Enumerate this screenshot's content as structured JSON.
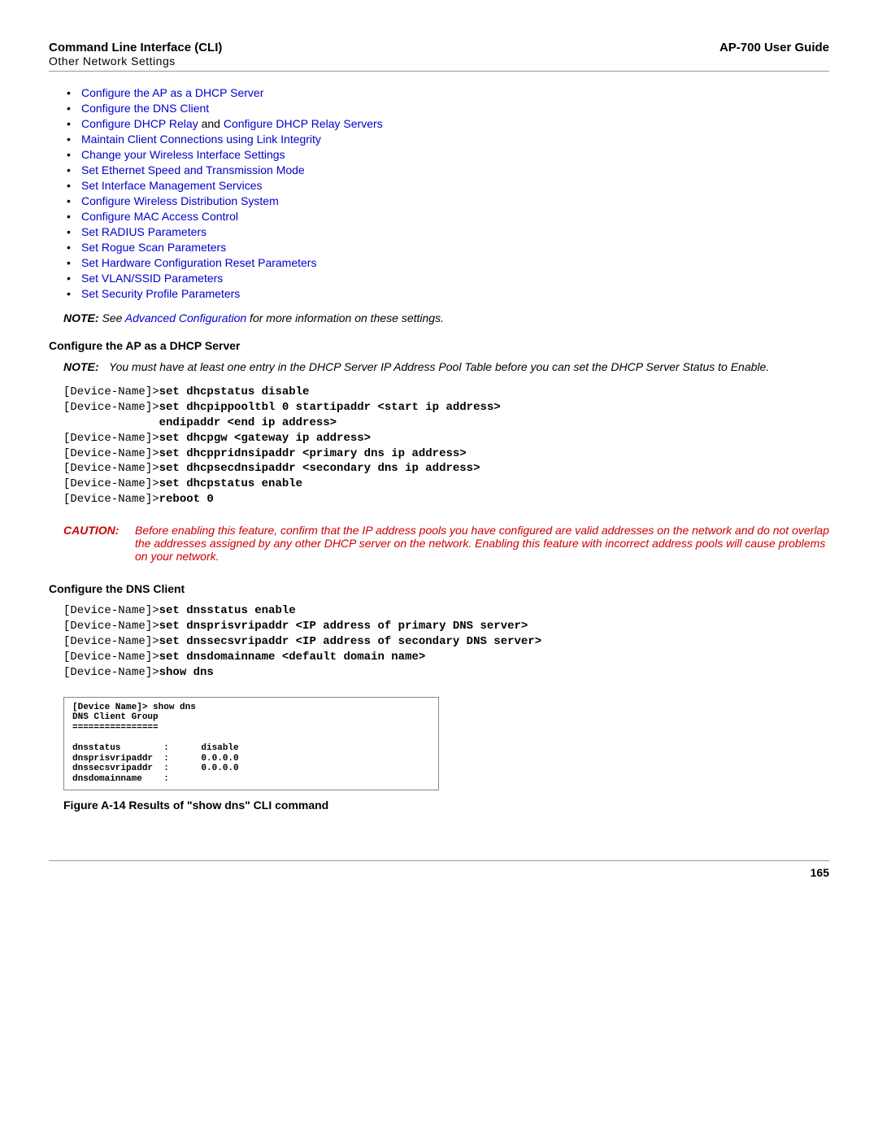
{
  "header": {
    "title": "Command Line Interface (CLI)",
    "subtitle": "Other Network Settings",
    "right": "AP-700 User Guide"
  },
  "links": [
    {
      "label": "Configure the AP as a DHCP Server"
    },
    {
      "label": "Configure the DNS Client"
    },
    {
      "label": "Configure DHCP Relay",
      "conj": " and ",
      "label2": "Configure DHCP Relay Servers"
    },
    {
      "label": "Maintain Client Connections using Link Integrity"
    },
    {
      "label": "Change your Wireless Interface Settings"
    },
    {
      "label": "Set Ethernet Speed and Transmission Mode"
    },
    {
      "label": "Set Interface Management Services"
    },
    {
      "label": "Configure Wireless Distribution System"
    },
    {
      "label": "Configure MAC Access Control"
    },
    {
      "label": "Set RADIUS Parameters"
    },
    {
      "label": "Set Rogue Scan Parameters"
    },
    {
      "label": "Set Hardware Configuration Reset Parameters"
    },
    {
      "label": "Set VLAN/SSID Parameters"
    },
    {
      "label": "Set Security Profile Parameters"
    }
  ],
  "note1": {
    "label": "NOTE:",
    "pre": " See ",
    "link": "Advanced Configuration",
    "post": " for more information on these settings."
  },
  "section1": {
    "heading": "Configure the AP as a DHCP Server",
    "note_label": "NOTE:",
    "note_text": "You must have at least one entry in the DHCP Server IP Address Pool Table before you can set the DHCP Server Status to Enable.",
    "code_lines": [
      {
        "p": "[Device-Name]>",
        "b": "set dhcpstatus disable"
      },
      {
        "p": "[Device-Name]>",
        "b": "set dhcpippooltbl 0 startipaddr <start ip address>"
      },
      {
        "p": "              ",
        "b": "endipaddr <end ip address>"
      },
      {
        "p": "[Device-Name]>",
        "b": "set dhcpgw <gateway ip address>"
      },
      {
        "p": "[Device-Name]>",
        "b": "set dhcppridnsipaddr <primary dns ip address>"
      },
      {
        "p": "[Device-Name]>",
        "b": "set dhcpsecdnsipaddr <secondary dns ip address>"
      },
      {
        "p": "[Device-Name]>",
        "b": "set dhcpstatus enable"
      },
      {
        "p": "[Device-Name]>",
        "b": "reboot 0"
      }
    ]
  },
  "caution": {
    "label": "CAUTION:",
    "text": "Before enabling this feature, confirm that the IP address pools you have configured are valid addresses on the network and do not overlap the addresses assigned by any other DHCP server on the network. Enabling this feature with incorrect address pools will cause problems on your network."
  },
  "section2": {
    "heading": "Configure the DNS Client",
    "code_lines": [
      {
        "p": "[Device-Name]>",
        "b": "set dnsstatus enable"
      },
      {
        "p": "[Device-Name]>",
        "b": "set dnsprisvripaddr <IP address of primary DNS server>"
      },
      {
        "p": "[Device-Name]>",
        "b": "set dnssecsvripaddr <IP address of secondary DNS server>"
      },
      {
        "p": "[Device-Name]>",
        "b": "set dnsdomainname <default domain name>"
      },
      {
        "p": "[Device-Name]>",
        "b": "show dns"
      }
    ],
    "output": "[Device Name]> show dns\nDNS Client Group\n================\n\ndnsstatus        :      disable\ndnsprisvripaddr  :      0.0.0.0\ndnssecsvripaddr  :      0.0.0.0\ndnsdomainname    :",
    "figure": "Figure A-14 Results of \"show dns\" CLI command"
  },
  "page_number": "165"
}
